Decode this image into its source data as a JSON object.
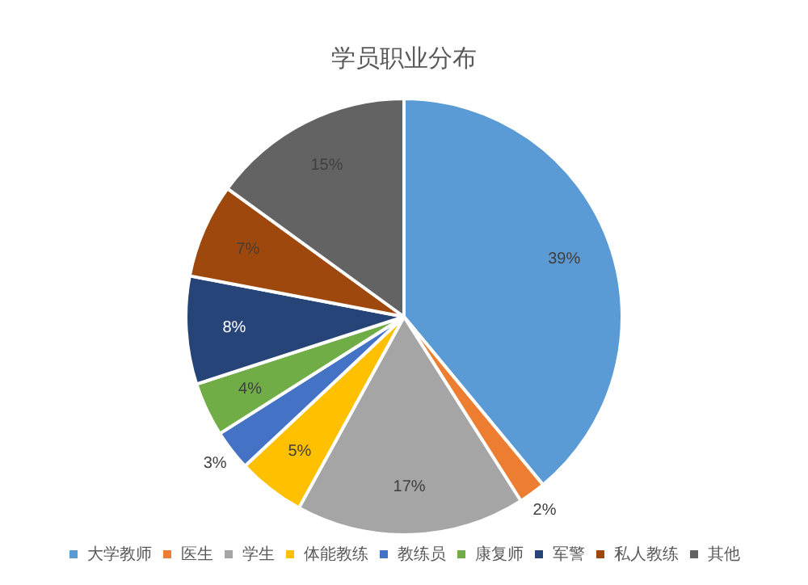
{
  "chart_data": {
    "type": "pie",
    "title": "学员职业分布",
    "categories": [
      "大学教师",
      "医生",
      "学生",
      "体能教练",
      "教练员",
      "康复师",
      "军警",
      "私人教练",
      "其他"
    ],
    "values": [
      39,
      2,
      17,
      5,
      3,
      4,
      8,
      7,
      15
    ],
    "colors": [
      "#5b9bd5",
      "#ed7d31",
      "#a5a5a5",
      "#ffc000",
      "#4472c4",
      "#70ad47",
      "#264478",
      "#9e480e",
      "#636363"
    ],
    "value_labels": [
      "39%",
      "2%",
      "17%",
      "5%",
      "3%",
      "4%",
      "8%",
      "7%",
      "15%"
    ],
    "legend": "bottom"
  }
}
